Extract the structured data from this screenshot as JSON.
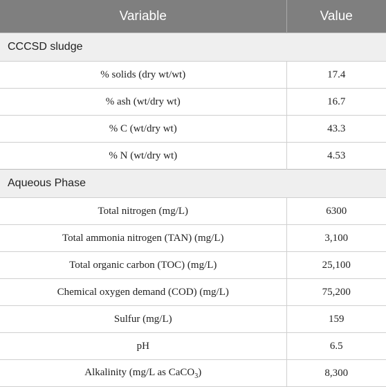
{
  "table": {
    "headers": [
      "Variable",
      "Value"
    ],
    "sections": [
      {
        "title": "CCCSD sludge",
        "rows": [
          {
            "variable": "% solids (dry wt/wt)",
            "value": "17.4"
          },
          {
            "variable": "% ash (wt/dry wt)",
            "value": "16.7"
          },
          {
            "variable": "% C (wt/dry wt)",
            "value": "43.3"
          },
          {
            "variable": "% N (wt/dry wt)",
            "value": "4.53"
          }
        ]
      },
      {
        "title": "Aqueous Phase",
        "rows": [
          {
            "variable": "Total nitrogen (mg/L)",
            "value": "6300"
          },
          {
            "variable": "Total ammonia nitrogen (TAN) (mg/L)",
            "value": "3,100"
          },
          {
            "variable": "Total organic carbon (TOC) (mg/L)",
            "value": "25,100"
          },
          {
            "variable": "Chemical oxygen demand (COD) (mg/L)",
            "value": "75,200"
          },
          {
            "variable": "Sulfur (mg/L)",
            "value": "159"
          },
          {
            "variable": "pH",
            "value": "6.5"
          },
          {
            "variable_prefix": "Alkalinity (mg/L as CaCO",
            "variable_sub": "3",
            "variable_suffix": ")",
            "value": "8,300"
          }
        ]
      }
    ]
  }
}
